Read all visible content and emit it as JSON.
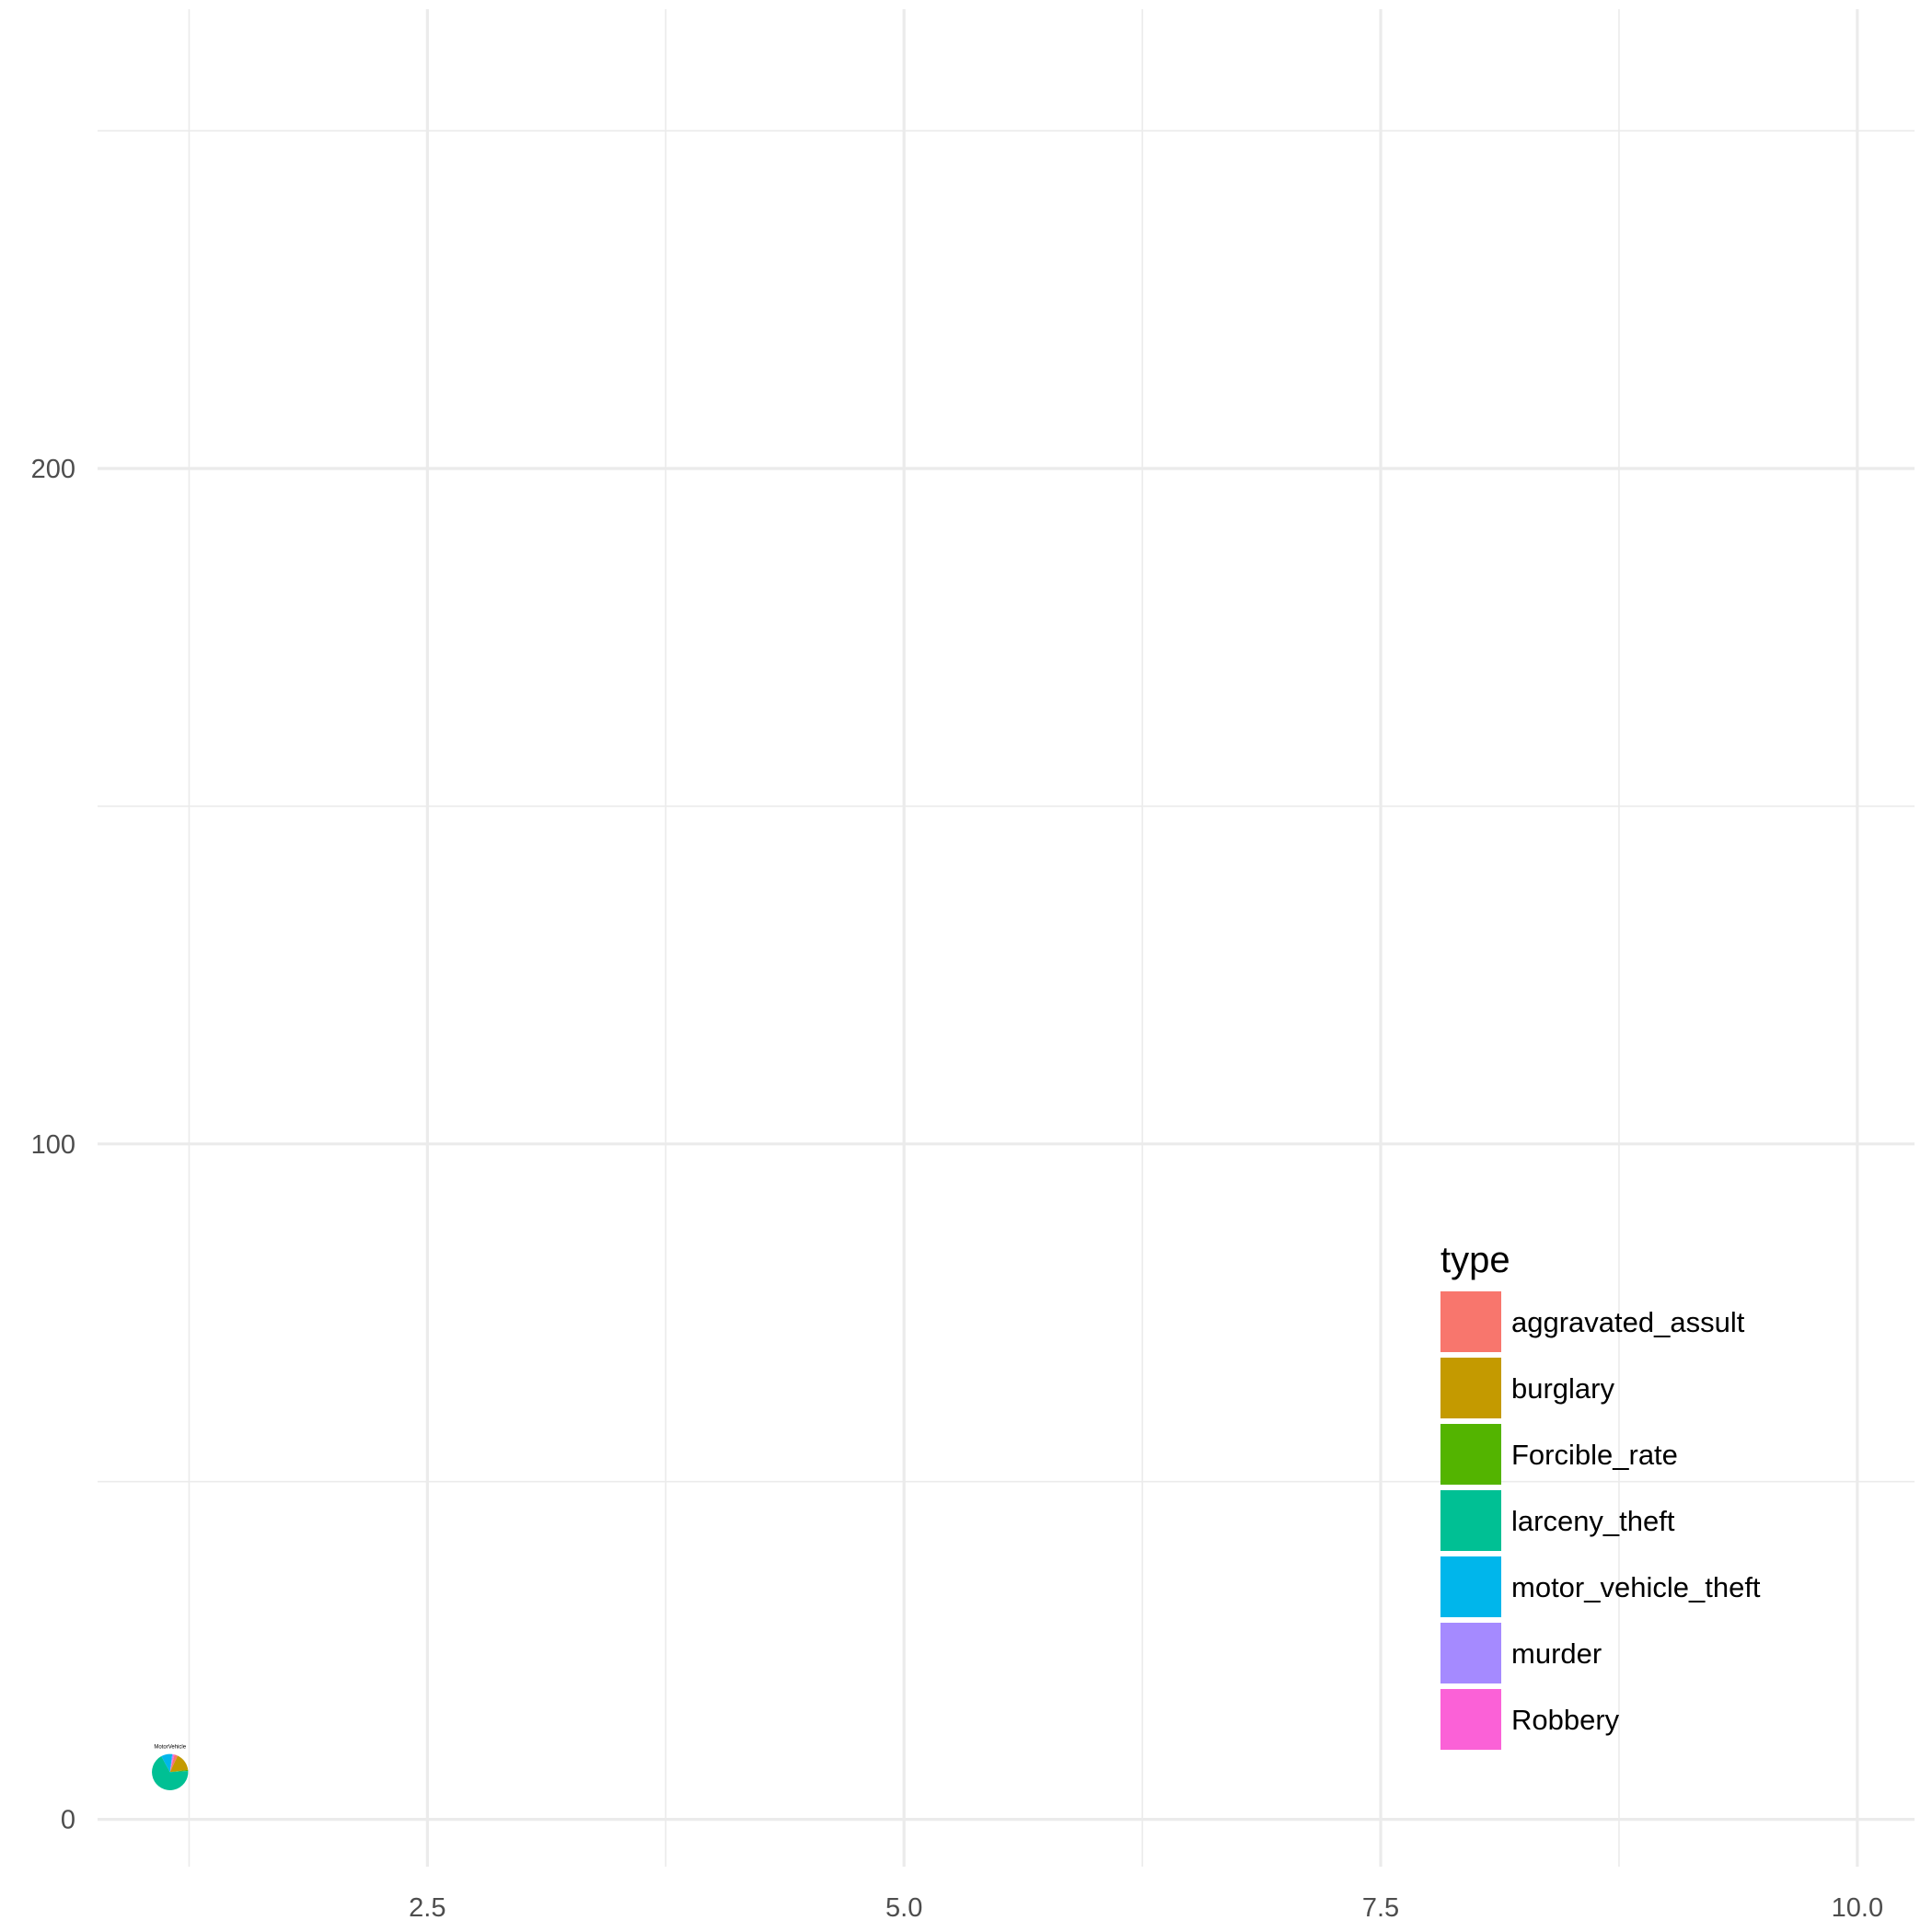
{
  "chart_data": {
    "type": "scatter",
    "subtype": "scatterpie",
    "title": "",
    "xlabel": "",
    "ylabel": "",
    "xlim": [
      0.77,
      10.3
    ],
    "ylim": [
      -4,
      268
    ],
    "x_ticks": [
      2.5,
      5.0,
      7.5,
      10.0
    ],
    "x_tick_labels": [
      "2.5",
      "5.0",
      "7.5",
      "10.0"
    ],
    "y_ticks": [
      0,
      100,
      200
    ],
    "y_tick_labels": [
      "0",
      "100",
      "200"
    ],
    "grid": true,
    "legend": {
      "title": "type",
      "position": "bottom-right",
      "entries": [
        {
          "label": "aggravated_assult",
          "color": "#F8766D"
        },
        {
          "label": "burglary",
          "color": "#C49A00"
        },
        {
          "label": "Forcible_rate",
          "color": "#53B400"
        },
        {
          "label": "larceny_theft",
          "color": "#00C094"
        },
        {
          "label": "motor_vehicle_theft",
          "color": "#00B6EB"
        },
        {
          "label": "murder",
          "color": "#A58AFF"
        },
        {
          "label": "Robbery",
          "color": "#FB61D7"
        }
      ]
    },
    "pies": [
      {
        "label": "MotorVehicle",
        "x": 1.15,
        "y": 7,
        "radius_data_x": 0.1,
        "slices": [
          {
            "type": "aggravated_assult",
            "share": 0.03
          },
          {
            "type": "burglary",
            "share": 0.16
          },
          {
            "type": "Forcible_rate",
            "share": 0.01
          },
          {
            "type": "larceny_theft",
            "share": 0.68
          },
          {
            "type": "motor_vehicle_theft",
            "share": 0.1
          },
          {
            "type": "murder",
            "share": 0.01
          },
          {
            "type": "Robbery",
            "share": 0.01
          }
        ]
      }
    ]
  }
}
